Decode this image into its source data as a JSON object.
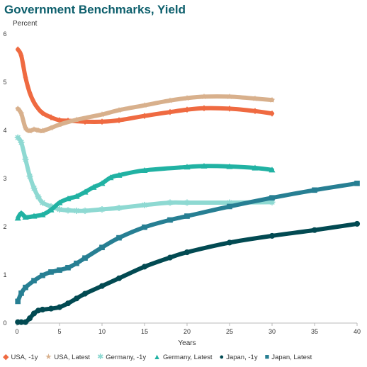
{
  "chart_data": {
    "type": "line",
    "title": "Government Benchmarks, Yield",
    "ylabel": "Percent",
    "xlabel": "Years",
    "xlim": [
      0,
      40
    ],
    "ylim": [
      0,
      6
    ],
    "x_ticks": [
      "0",
      "5",
      "10",
      "15",
      "20",
      "25",
      "30",
      "35",
      "40"
    ],
    "y_ticks": [
      "0",
      "1",
      "2",
      "3",
      "4",
      "5",
      "6"
    ],
    "grid": false,
    "legend_position": "bottom",
    "series": [
      {
        "name": "USA, -1y",
        "color": "#ef6a41",
        "marker": "diamond",
        "points": [
          [
            0.1,
            5.68
          ],
          [
            0.5,
            5.55
          ],
          [
            1,
            5.1
          ],
          [
            1.5,
            4.78
          ],
          [
            2,
            4.58
          ],
          [
            2.5,
            4.45
          ],
          [
            3,
            4.36
          ],
          [
            4,
            4.27
          ],
          [
            5,
            4.21
          ],
          [
            6,
            4.2
          ],
          [
            8,
            4.18
          ],
          [
            10,
            4.18
          ],
          [
            12,
            4.21
          ],
          [
            15,
            4.3
          ],
          [
            18,
            4.38
          ],
          [
            20,
            4.43
          ],
          [
            22,
            4.46
          ],
          [
            25,
            4.45
          ],
          [
            28,
            4.4
          ],
          [
            30,
            4.35
          ]
        ]
      },
      {
        "name": "USA, Latest",
        "color": "#d8b08c",
        "marker": "star",
        "points": [
          [
            0.1,
            4.45
          ],
          [
            0.5,
            4.35
          ],
          [
            1,
            4.05
          ],
          [
            1.5,
            3.99
          ],
          [
            2,
            4.02
          ],
          [
            2.5,
            4.0
          ],
          [
            3,
            3.99
          ],
          [
            4,
            4.05
          ],
          [
            5,
            4.12
          ],
          [
            7,
            4.22
          ],
          [
            10,
            4.33
          ],
          [
            12,
            4.42
          ],
          [
            15,
            4.52
          ],
          [
            18,
            4.62
          ],
          [
            20,
            4.67
          ],
          [
            22,
            4.7
          ],
          [
            25,
            4.7
          ],
          [
            28,
            4.66
          ],
          [
            30,
            4.63
          ]
        ]
      },
      {
        "name": "Germany, -1y",
        "color": "#8ed9d2",
        "marker": "asterisk",
        "points": [
          [
            0.1,
            3.85
          ],
          [
            0.5,
            3.75
          ],
          [
            1,
            3.4
          ],
          [
            1.5,
            3.05
          ],
          [
            2,
            2.8
          ],
          [
            2.5,
            2.62
          ],
          [
            3,
            2.5
          ],
          [
            4,
            2.42
          ],
          [
            5,
            2.36
          ],
          [
            6,
            2.34
          ],
          [
            7,
            2.33
          ],
          [
            8,
            2.33
          ],
          [
            10,
            2.36
          ],
          [
            12,
            2.39
          ],
          [
            15,
            2.45
          ],
          [
            18,
            2.5
          ],
          [
            20,
            2.5
          ],
          [
            25,
            2.5
          ],
          [
            30,
            2.51
          ]
        ]
      },
      {
        "name": "Germany, Latest",
        "color": "#21b2a3",
        "marker": "triangle",
        "points": [
          [
            0.1,
            2.18
          ],
          [
            0.5,
            2.28
          ],
          [
            1,
            2.2
          ],
          [
            2,
            2.22
          ],
          [
            3,
            2.25
          ],
          [
            4,
            2.35
          ],
          [
            5,
            2.5
          ],
          [
            6,
            2.58
          ],
          [
            7,
            2.63
          ],
          [
            8,
            2.72
          ],
          [
            9,
            2.82
          ],
          [
            10,
            2.9
          ],
          [
            11,
            3.02
          ],
          [
            12,
            3.07
          ],
          [
            15,
            3.17
          ],
          [
            20,
            3.24
          ],
          [
            22,
            3.26
          ],
          [
            25,
            3.25
          ],
          [
            28,
            3.22
          ],
          [
            30,
            3.18
          ]
        ]
      },
      {
        "name": "Japan, -1y",
        "color": "#024a52",
        "marker": "circle",
        "points": [
          [
            0.1,
            0.02
          ],
          [
            0.5,
            0.02
          ],
          [
            1,
            0.02
          ],
          [
            1.5,
            0.1
          ],
          [
            2,
            0.2
          ],
          [
            2.5,
            0.26
          ],
          [
            3,
            0.28
          ],
          [
            4,
            0.3
          ],
          [
            5,
            0.33
          ],
          [
            6,
            0.41
          ],
          [
            7,
            0.51
          ],
          [
            8,
            0.61
          ],
          [
            10,
            0.77
          ],
          [
            12,
            0.93
          ],
          [
            15,
            1.17
          ],
          [
            18,
            1.36
          ],
          [
            20,
            1.47
          ],
          [
            25,
            1.67
          ],
          [
            30,
            1.81
          ],
          [
            35,
            1.93
          ],
          [
            40,
            2.06
          ]
        ]
      },
      {
        "name": "Japan, Latest",
        "color": "#277f93",
        "marker": "square",
        "points": [
          [
            0.1,
            0.45
          ],
          [
            0.5,
            0.62
          ],
          [
            1,
            0.74
          ],
          [
            2,
            0.88
          ],
          [
            3,
            0.99
          ],
          [
            4,
            1.06
          ],
          [
            5,
            1.1
          ],
          [
            6,
            1.15
          ],
          [
            7,
            1.24
          ],
          [
            8,
            1.35
          ],
          [
            10,
            1.57
          ],
          [
            12,
            1.77
          ],
          [
            15,
            1.99
          ],
          [
            18,
            2.14
          ],
          [
            20,
            2.22
          ],
          [
            25,
            2.42
          ],
          [
            30,
            2.6
          ],
          [
            35,
            2.76
          ],
          [
            40,
            2.9
          ]
        ]
      }
    ]
  }
}
